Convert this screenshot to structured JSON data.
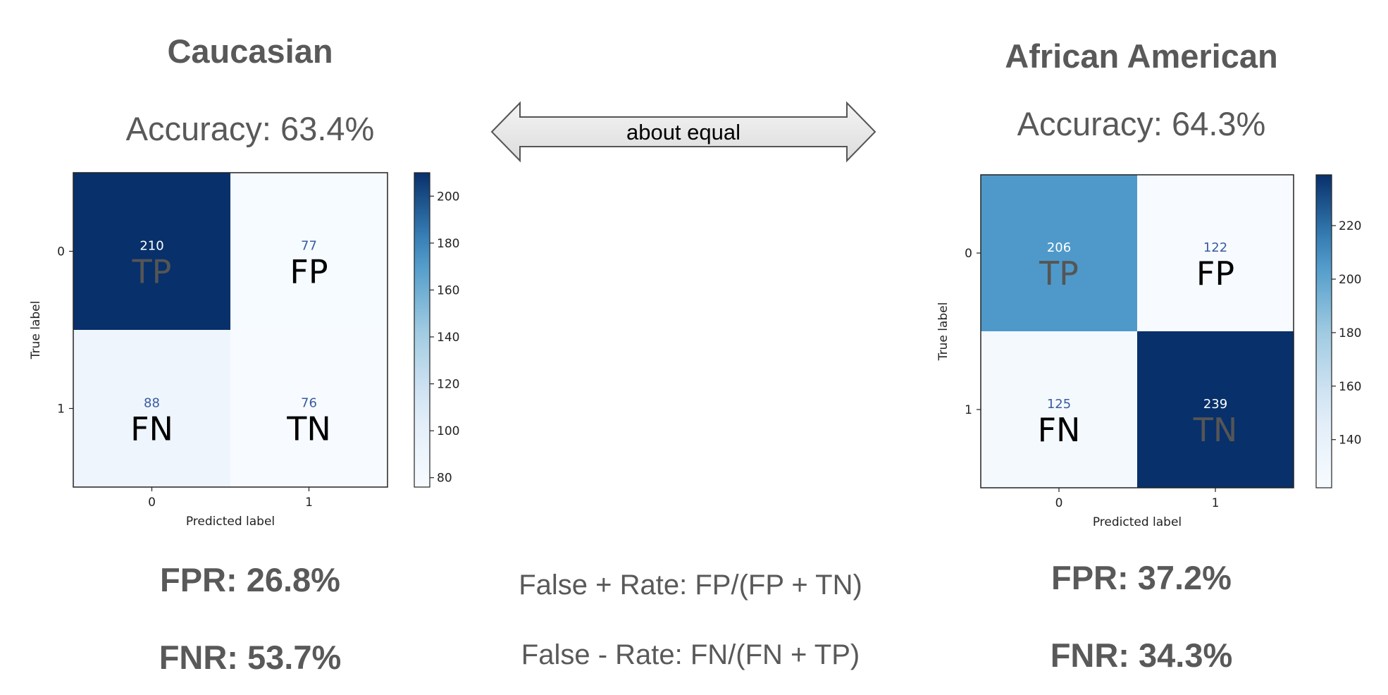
{
  "arrow": {
    "label": "about equal"
  },
  "formulas": {
    "fpr": "False + Rate: FP/(FP + TN)",
    "fnr": "False - Rate: FN/(FN + TP)"
  },
  "groups": [
    {
      "title": "Caucasian",
      "accuracy": "Accuracy: 63.4%",
      "fpr": "FPR: 26.8%",
      "fnr": "FNR: 53.7%"
    },
    {
      "title": "African American",
      "accuracy": "Accuracy: 64.3%",
      "fpr": "FPR: 37.2%",
      "fnr": "FNR: 34.3%"
    }
  ],
  "chart_data": [
    {
      "type": "heatmap",
      "title": "",
      "xlabel": "Predicted label",
      "ylabel": "True label",
      "x_ticks": [
        "0",
        "1"
      ],
      "y_ticks": [
        "0",
        "1"
      ],
      "matrix": [
        [
          210,
          77
        ],
        [
          88,
          76
        ]
      ],
      "cell_labels": [
        [
          "TP",
          "FP"
        ],
        [
          "FN",
          "TN"
        ]
      ],
      "colorbar": {
        "range": [
          76,
          210
        ],
        "ticks": [
          80,
          100,
          120,
          140,
          160,
          180,
          200
        ],
        "colormap": "Blues"
      }
    },
    {
      "type": "heatmap",
      "title": "",
      "xlabel": "Predicted label",
      "ylabel": "True label",
      "x_ticks": [
        "0",
        "1"
      ],
      "y_ticks": [
        "0",
        "1"
      ],
      "matrix": [
        [
          206,
          122
        ],
        [
          125,
          239
        ]
      ],
      "cell_labels": [
        [
          "TP",
          "FP"
        ],
        [
          "FN",
          "TN"
        ]
      ],
      "colorbar": {
        "range": [
          122,
          239
        ],
        "ticks": [
          140,
          160,
          180,
          200,
          220
        ],
        "colormap": "Blues"
      }
    }
  ]
}
